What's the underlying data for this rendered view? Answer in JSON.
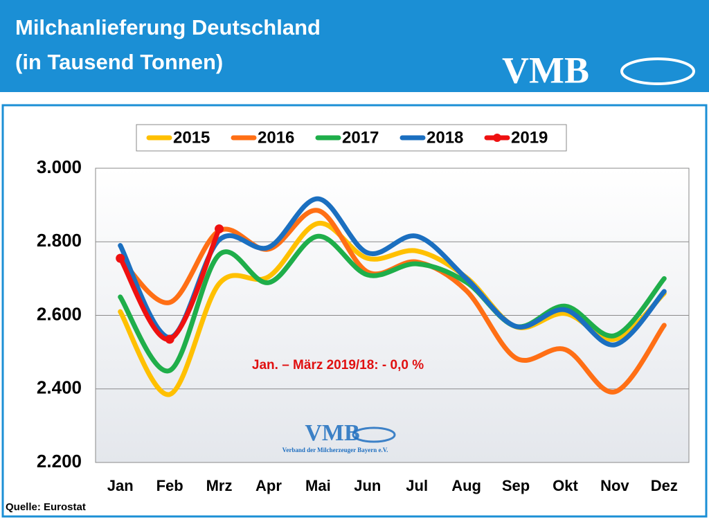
{
  "chart_data": {
    "type": "line",
    "title": "Milchanlieferung Deutschland",
    "subtitle": "(in Tausend Tonnen)",
    "logo": "VMB",
    "watermark": "VMB",
    "watermark_caption": "Verband der Milcherzeuger Bayern e.V.",
    "annotation": "Jan. – März 2019/18:  - 0,0 %",
    "source": "Quelle: Eurostat",
    "categories": [
      "Jan",
      "Feb",
      "Mrz",
      "Apr",
      "Mai",
      "Jun",
      "Jul",
      "Aug",
      "Sep",
      "Okt",
      "Nov",
      "Dez"
    ],
    "series": [
      {
        "name": "2015",
        "color": "#ffc000",
        "values": [
          2610,
          2385,
          2686,
          2705,
          2850,
          2755,
          2775,
          2703,
          2569,
          2605,
          2535,
          2660
        ]
      },
      {
        "name": "2016",
        "color": "#ff6f15",
        "values": [
          2755,
          2635,
          2830,
          2780,
          2885,
          2718,
          2745,
          2667,
          2484,
          2507,
          2392,
          2573
        ]
      },
      {
        "name": "2017",
        "color": "#1fae4a",
        "values": [
          2650,
          2450,
          2765,
          2689,
          2815,
          2710,
          2740,
          2690,
          2570,
          2625,
          2545,
          2700
        ]
      },
      {
        "name": "2018",
        "color": "#1b6fc0",
        "values": [
          2790,
          2540,
          2805,
          2785,
          2917,
          2770,
          2815,
          2700,
          2570,
          2615,
          2520,
          2665
        ]
      },
      {
        "name": "2019",
        "color": "#ee1111",
        "values": [
          2755,
          2535,
          2835,
          null,
          null,
          null,
          null,
          null,
          null,
          null,
          null,
          null
        ],
        "markers": true
      }
    ],
    "ylim": [
      2200,
      3000
    ],
    "yticks": [
      {
        "value": 2200,
        "label": "2.200"
      },
      {
        "value": 2400,
        "label": "2.400"
      },
      {
        "value": 2600,
        "label": "2.600"
      },
      {
        "value": 2800,
        "label": "2.800"
      },
      {
        "value": 3000,
        "label": "3.000"
      }
    ],
    "grid": true
  }
}
